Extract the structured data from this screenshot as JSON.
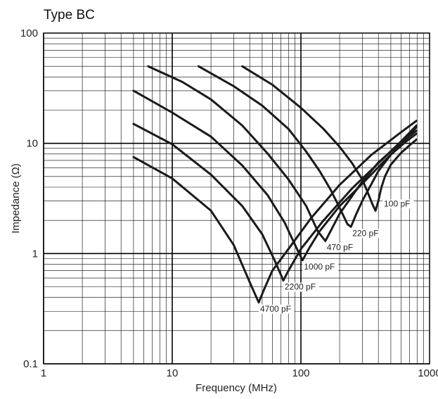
{
  "chart_data": {
    "type": "line",
    "title": "Type BC",
    "xlabel": "Frequency (MHz)",
    "ylabel": "Impedance (Ω)",
    "x_scale": "log",
    "y_scale": "log",
    "xlim": [
      1,
      1000
    ],
    "ylim": [
      0.1,
      100
    ],
    "x_ticks": [
      "1",
      "10",
      "100",
      "1000"
    ],
    "y_ticks": [
      "0.1",
      "1",
      "10",
      "100"
    ],
    "grid": true,
    "legend": "none",
    "series": [
      {
        "name": "100 pF",
        "label_position": "right",
        "x": [
          35,
          60,
          100,
          150,
          200,
          250,
          300,
          330,
          360,
          380,
          400,
          420,
          450,
          500,
          600,
          700,
          790
        ],
        "y": [
          50,
          34,
          21,
          13.5,
          9.3,
          6.6,
          4.7,
          3.6,
          2.8,
          2.45,
          3.0,
          3.9,
          5.0,
          6.4,
          8.2,
          9.6,
          10.8
        ]
      },
      {
        "name": "220 pF",
        "label_position": "below",
        "x": [
          16,
          30,
          50,
          80,
          110,
          140,
          170,
          200,
          230,
          245,
          270,
          300,
          400,
          500,
          650,
          790
        ],
        "y": [
          50,
          33,
          22,
          13.5,
          8.4,
          5.6,
          3.8,
          2.6,
          1.85,
          1.75,
          2.3,
          3.0,
          5.6,
          7.9,
          10.3,
          12.2
        ]
      },
      {
        "name": "470 pF",
        "label_position": "below",
        "x": [
          6.5,
          12,
          20,
          35,
          55,
          80,
          110,
          135,
          155,
          170,
          200,
          300,
          400,
          550,
          790
        ],
        "y": [
          50,
          36,
          25,
          14.5,
          8.1,
          4.7,
          2.7,
          1.6,
          1.3,
          1.6,
          2.3,
          4.5,
          6.7,
          9.3,
          13.0
        ]
      },
      {
        "name": "1000 pF",
        "label_position": "below",
        "x": [
          5,
          10,
          20,
          35,
          55,
          75,
          95,
          103,
          115,
          140,
          200,
          300,
          450,
          600,
          790
        ],
        "y": [
          30,
          19,
          11.5,
          6.3,
          3.4,
          1.9,
          1.05,
          0.87,
          1.1,
          1.6,
          2.7,
          4.3,
          7.0,
          9.7,
          14.0
        ]
      },
      {
        "name": "2200 pF",
        "label_position": "below",
        "x": [
          5,
          10,
          20,
          35,
          50,
          63,
          73,
          80,
          100,
          150,
          250,
          400,
          600,
          790
        ],
        "y": [
          15,
          9.8,
          5.2,
          2.7,
          1.5,
          0.85,
          0.57,
          0.7,
          1.1,
          2.0,
          3.9,
          6.6,
          10.4,
          14.5
        ]
      },
      {
        "name": "4700 pF",
        "label_position": "below",
        "x": [
          5,
          10,
          20,
          30,
          40,
          47,
          52,
          60,
          80,
          120,
          200,
          350,
          600,
          790
        ],
        "y": [
          7.5,
          4.8,
          2.45,
          1.2,
          0.55,
          0.36,
          0.48,
          0.7,
          1.1,
          2.1,
          4.2,
          7.8,
          12.6,
          16.0
        ]
      }
    ]
  }
}
